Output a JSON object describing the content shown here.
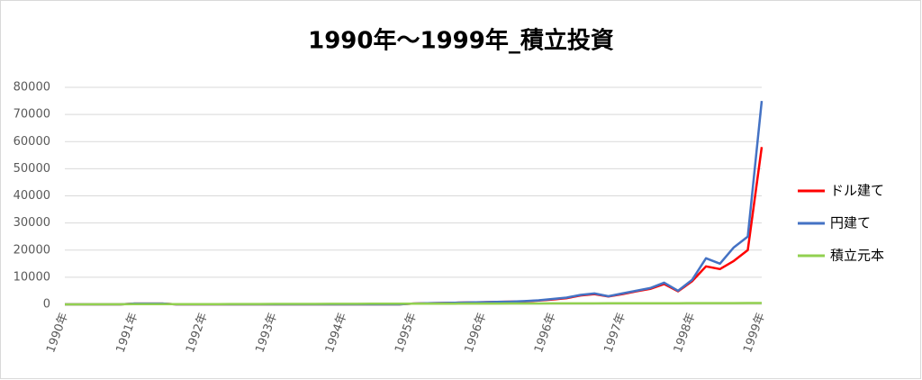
{
  "chart_data": {
    "type": "line",
    "title": "1990年～1999年_積立投資",
    "categories": [
      "1990年",
      null,
      null,
      null,
      null,
      "1991年",
      null,
      null,
      null,
      null,
      "1992年",
      null,
      null,
      null,
      null,
      "1993年",
      null,
      null,
      null,
      null,
      "1994年",
      null,
      null,
      null,
      null,
      "1995年",
      null,
      null,
      null,
      null,
      "1996年",
      null,
      null,
      null,
      null,
      "1996年",
      null,
      null,
      null,
      null,
      "1997年",
      null,
      null,
      null,
      null,
      "1998年",
      null,
      null,
      null,
      null,
      "1999年"
    ],
    "series": [
      {
        "name": "ドル建て",
        "color": "#ff0000",
        "values": [
          0,
          0,
          0,
          0,
          0,
          300,
          300,
          300,
          0,
          0,
          0,
          0,
          0,
          0,
          0,
          0,
          0,
          0,
          0,
          0,
          0,
          0,
          0,
          0,
          0,
          300,
          400,
          500,
          600,
          700,
          800,
          900,
          1000,
          1100,
          1400,
          1800,
          2300,
          3300,
          3800,
          2900,
          3800,
          4800,
          5700,
          7500,
          4800,
          8500,
          14000,
          13000,
          16000,
          20000,
          58000
        ]
      },
      {
        "name": "円建て",
        "color": "#4472c4",
        "values": [
          0,
          0,
          0,
          0,
          0,
          300,
          300,
          300,
          0,
          0,
          0,
          0,
          0,
          0,
          0,
          0,
          0,
          0,
          0,
          0,
          0,
          0,
          0,
          0,
          0,
          300,
          400,
          500,
          600,
          700,
          800,
          900,
          1000,
          1200,
          1500,
          2000,
          2500,
          3500,
          4000,
          3000,
          4000,
          5000,
          6000,
          8000,
          5000,
          9000,
          17000,
          15000,
          21000,
          25000,
          75000
        ]
      },
      {
        "name": "積立元本",
        "color": "#92d050",
        "values": [
          0,
          10,
          20,
          30,
          40,
          50,
          60,
          70,
          80,
          90,
          100,
          110,
          120,
          130,
          140,
          150,
          160,
          170,
          180,
          190,
          200,
          210,
          220,
          230,
          240,
          250,
          260,
          270,
          280,
          290,
          300,
          310,
          320,
          330,
          340,
          350,
          360,
          370,
          380,
          390,
          400,
          410,
          420,
          430,
          440,
          450,
          460,
          470,
          480,
          490,
          500
        ]
      }
    ],
    "ylim": [
      0,
      80000
    ],
    "yticks": [
      0,
      10000,
      20000,
      30000,
      40000,
      50000,
      60000,
      70000,
      80000
    ],
    "grid": true,
    "legend": "right"
  }
}
